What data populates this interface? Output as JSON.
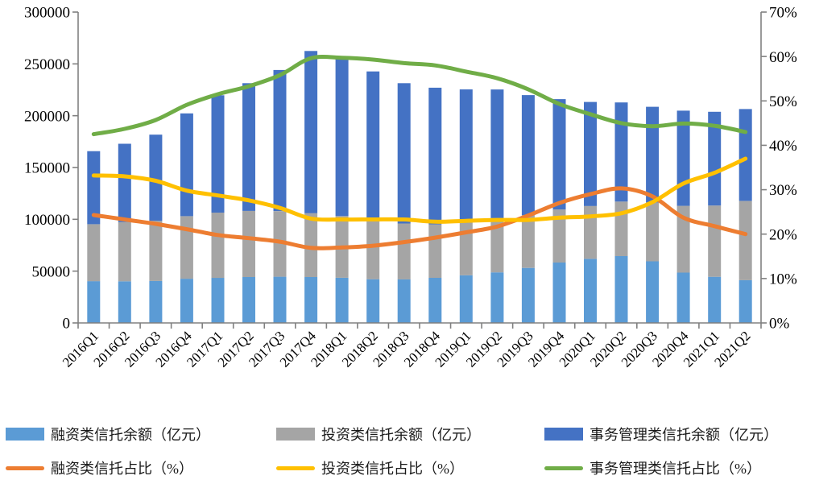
{
  "chart_data": {
    "type": "combo-stacked-bar-line",
    "title": "",
    "categories": [
      "2016Q1",
      "2016Q2",
      "2016Q3",
      "2016Q4",
      "2017Q1",
      "2017Q2",
      "2017Q3",
      "2017Q4",
      "2018Q1",
      "2018Q2",
      "2018Q3",
      "2018Q4",
      "2019Q1",
      "2019Q2",
      "2019Q3",
      "2019Q4",
      "2020Q1",
      "2020Q2",
      "2020Q3",
      "2020Q4",
      "2021Q1",
      "2021Q2"
    ],
    "bar_series": [
      {
        "name": "融资类信托余额（亿元）",
        "color": "#5B9BD5",
        "axis": "left",
        "values": [
          40300,
          40200,
          40500,
          42700,
          43500,
          44300,
          44600,
          44300,
          43600,
          42200,
          42100,
          43500,
          46000,
          48800,
          53100,
          58300,
          61800,
          64500,
          59500,
          48600,
          44500,
          41300
        ]
      },
      {
        "name": "投资类信托余额（亿元）",
        "color": "#A5A5A5",
        "axis": "left",
        "values": [
          55000,
          57100,
          58100,
          60300,
          63000,
          63800,
          63300,
          61700,
          59700,
          56600,
          53900,
          51700,
          51900,
          52300,
          51100,
          51200,
          51100,
          52600,
          56800,
          64400,
          68800,
          76400
        ]
      },
      {
        "name": "事务管理类信托余额（亿元）",
        "color": "#4472C4",
        "axis": "left",
        "values": [
          70500,
          75600,
          83100,
          99200,
          113200,
          123300,
          136200,
          156500,
          152800,
          143900,
          135400,
          131800,
          127500,
          124200,
          115700,
          106500,
          100400,
          95700,
          92300,
          91900,
          90500,
          88700
        ]
      }
    ],
    "line_series": [
      {
        "name": "融资类信托占比（%）",
        "color": "#ED7D31",
        "axis": "right",
        "values": [
          24.3,
          23.3,
          22.3,
          21.1,
          19.8,
          19.1,
          18.3,
          16.9,
          17.0,
          17.4,
          18.2,
          19.2,
          20.4,
          21.7,
          24.2,
          27.0,
          29.0,
          30.3,
          28.5,
          23.7,
          21.8,
          20.0
        ]
      },
      {
        "name": "投资类信托占比（%）",
        "color": "#FFC000",
        "axis": "right",
        "values": [
          33.2,
          33.0,
          32.0,
          29.8,
          28.7,
          27.6,
          25.9,
          23.5,
          23.3,
          23.3,
          23.3,
          22.8,
          23.0,
          23.2,
          23.2,
          23.7,
          24.0,
          24.7,
          27.2,
          31.4,
          33.8,
          37.0
        ]
      },
      {
        "name": "事务管理类信托占比（%）",
        "color": "#70AD47",
        "axis": "right",
        "values": [
          42.5,
          43.7,
          45.7,
          49.1,
          51.5,
          53.3,
          55.8,
          59.6,
          59.7,
          59.3,
          58.5,
          58.0,
          56.6,
          55.1,
          52.6,
          49.3,
          47.0,
          45.0,
          44.3,
          44.9,
          44.4,
          43.0
        ]
      }
    ],
    "left_axis": {
      "min": 0,
      "max": 300000,
      "step": 50000,
      "tick_labels": [
        "0",
        "50000",
        "100000",
        "150000",
        "200000",
        "250000",
        "300000"
      ]
    },
    "right_axis": {
      "min": 0,
      "max": 70,
      "step": 10,
      "tick_labels": [
        "0%",
        "10%",
        "20%",
        "30%",
        "40%",
        "50%",
        "60%",
        "70%"
      ]
    },
    "grid": false,
    "legend_position": "bottom",
    "axis_color": "#808080",
    "text_color": "#000000",
    "background": "#FFFFFF"
  }
}
